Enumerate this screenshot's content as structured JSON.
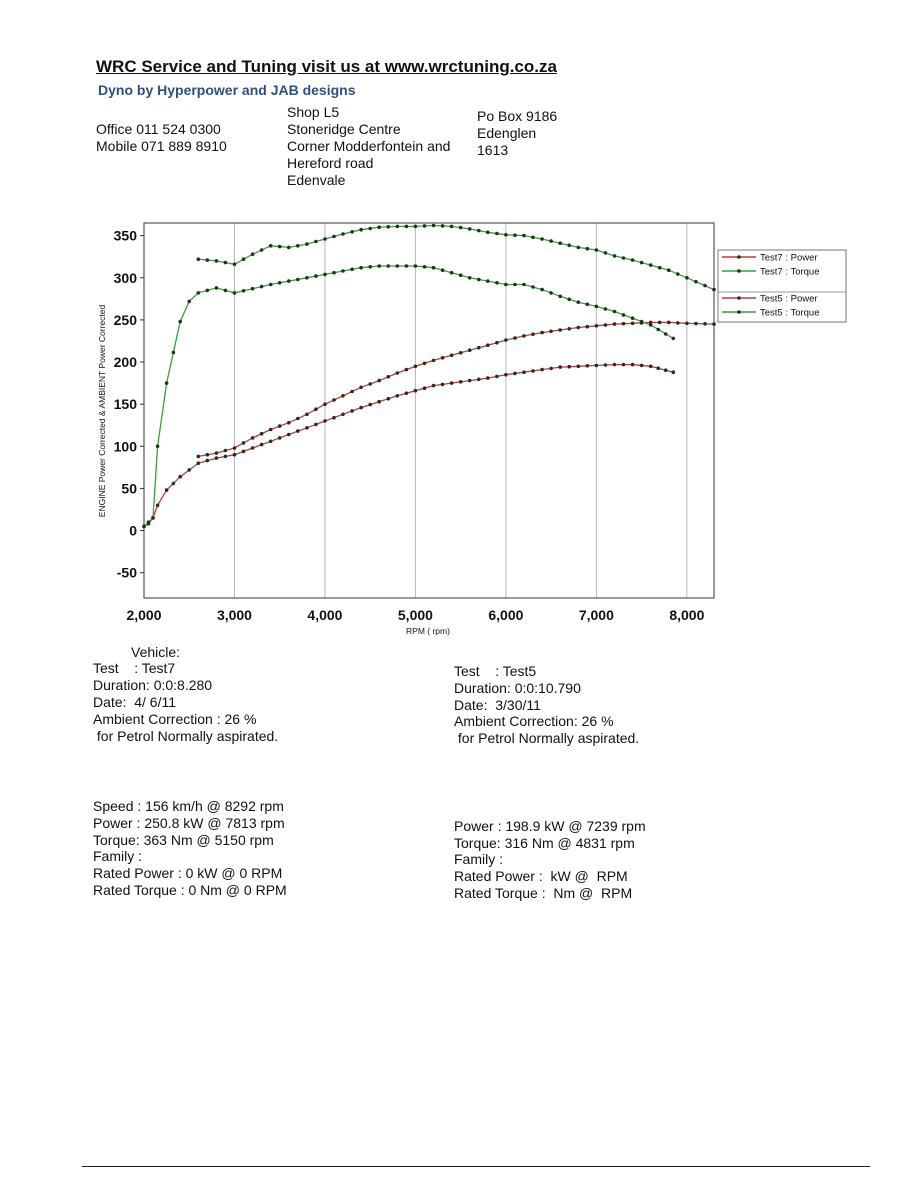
{
  "header": {
    "title": "WRC Service and Tuning visit us at www.wrctuning.co.za",
    "subtitle": "Dyno by Hyperpower and JAB designs",
    "office": "Office 011 524 0300",
    "mobile": "Mobile 071 889 8910",
    "address": [
      "Shop L5",
      "Stoneridge Centre",
      "Corner Modderfontein and",
      "Hereford road",
      "Edenvale"
    ],
    "po_box": [
      "Po Box 9186",
      "Edenglen",
      "1613"
    ]
  },
  "colors": {
    "power": "#c23b3b",
    "torque": "#3a9e3a",
    "marker": "#1f3320",
    "grid": "#b9b9b9"
  },
  "chart_data": {
    "type": "line",
    "xlabel": "RPM ( rpm)",
    "ylabel": "ENGINE Power Corrected & AMBIENT Power Corrected",
    "xlim": [
      2000,
      8300
    ],
    "ylim": [
      -80,
      365
    ],
    "xticks": [
      2000,
      3000,
      4000,
      5000,
      6000,
      7000,
      8000
    ],
    "xtick_labels": [
      "2,000",
      "3,000",
      "4,000",
      "5,000",
      "6,000",
      "7,000",
      "8,000"
    ],
    "yticks": [
      -50,
      0,
      50,
      100,
      150,
      200,
      250,
      300,
      350
    ],
    "ytick_labels": [
      "-50",
      "0",
      "50",
      "100",
      "150",
      "200",
      "250",
      "300",
      "350"
    ],
    "grid": "vertical",
    "legend_position": "right",
    "series": [
      {
        "name": "Test7 : Power",
        "color": "#c23b3b",
        "x": [
          2600,
          2800,
          3000,
          3200,
          3400,
          3600,
          3800,
          4000,
          4200,
          4400,
          4600,
          4800,
          5000,
          5200,
          5400,
          5600,
          5800,
          6000,
          6200,
          6400,
          6600,
          6800,
          7000,
          7200,
          7400,
          7600,
          7800,
          8000,
          8300
        ],
        "y": [
          88,
          92,
          98,
          110,
          120,
          128,
          138,
          150,
          160,
          170,
          178,
          187,
          195,
          202,
          208,
          214,
          220,
          226,
          231,
          235,
          238,
          241,
          243,
          245,
          246,
          247,
          247,
          246,
          245
        ]
      },
      {
        "name": "Test7 : Torque",
        "color": "#3a9e3a",
        "x": [
          2600,
          2800,
          3000,
          3200,
          3400,
          3600,
          3800,
          4000,
          4200,
          4400,
          4600,
          4800,
          5000,
          5200,
          5400,
          5600,
          5800,
          6000,
          6200,
          6400,
          6600,
          6800,
          7000,
          7200,
          7400,
          7600,
          7800,
          8000,
          8300
        ],
        "y": [
          322,
          320,
          316,
          328,
          338,
          336,
          340,
          346,
          352,
          357,
          360,
          361,
          361,
          362,
          361,
          358,
          354,
          351,
          350,
          346,
          341,
          336,
          333,
          326,
          321,
          315,
          309,
          300,
          286
        ]
      },
      {
        "name": "Test5 : Power",
        "color": "#c23b3b",
        "x": [
          2000,
          2050,
          2100,
          2150,
          2250,
          2400,
          2600,
          2800,
          3000,
          3200,
          3400,
          3600,
          3800,
          4000,
          4200,
          4400,
          4600,
          4800,
          5000,
          5200,
          5400,
          5600,
          5800,
          6000,
          6200,
          6400,
          6600,
          6800,
          7000,
          7200,
          7400,
          7600,
          7850
        ],
        "y": [
          5,
          8,
          15,
          30,
          48,
          64,
          80,
          86,
          90,
          98,
          106,
          114,
          122,
          130,
          138,
          146,
          153,
          160,
          166,
          172,
          175,
          178,
          181,
          185,
          188,
          191,
          194,
          195,
          196,
          197,
          197,
          195,
          188
        ]
      },
      {
        "name": "Test5 : Torque",
        "color": "#3a9e3a",
        "x": [
          2000,
          2050,
          2100,
          2150,
          2250,
          2400,
          2500,
          2600,
          2800,
          3000,
          3200,
          3400,
          3600,
          3800,
          4000,
          4200,
          4400,
          4600,
          4800,
          5000,
          5200,
          5400,
          5600,
          5800,
          6000,
          6200,
          6400,
          6600,
          6800,
          7000,
          7200,
          7400,
          7600,
          7850
        ],
        "y": [
          5,
          10,
          15,
          100,
          175,
          248,
          272,
          282,
          288,
          282,
          287,
          292,
          296,
          300,
          304,
          308,
          312,
          314,
          314,
          314,
          312,
          306,
          300,
          296,
          292,
          292,
          286,
          278,
          271,
          266,
          260,
          252,
          244,
          228
        ]
      }
    ]
  },
  "vehicle_label": "Vehicle:",
  "test7": {
    "test": "Test    : Test7",
    "duration": "Duration: 0:0:8.280",
    "date": "Date:  4/ 6/11",
    "ambient": "Ambient Correction : 26 %",
    "fuel": " for Petrol Normally aspirated.",
    "speed": "Speed : 156 km/h @ 8292 rpm",
    "power": "Power : 250.8 kW @ 7813 rpm",
    "torque": "Torque: 363 Nm @ 5150 rpm",
    "family": "Family :",
    "rated_power": "Rated Power : 0 kW @ 0 RPM",
    "rated_torque": "Rated Torque : 0 Nm @ 0 RPM"
  },
  "test5": {
    "test": "Test    : Test5",
    "duration": "Duration: 0:0:10.790",
    "date": "Date:  3/30/11",
    "ambient": "Ambient Correction: 26 %",
    "fuel": " for Petrol Normally aspirated.",
    "power": "Power : 198.9 kW @ 7239 rpm",
    "torque": "Torque: 316 Nm @ 4831 rpm",
    "family": "Family :",
    "rated_power": "Rated Power :  kW @  RPM",
    "rated_torque": "Rated Torque :  Nm @  RPM"
  }
}
